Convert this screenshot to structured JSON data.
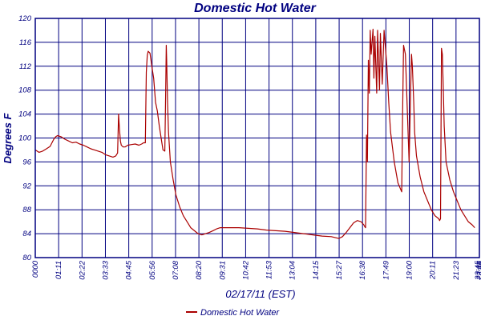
{
  "chart_data": {
    "type": "line",
    "title": "Domestic Hot Water",
    "xlabel": "02/17/11 (EST)",
    "ylabel": "Degrees F",
    "ylim": [
      80,
      120
    ],
    "yticks": [
      80,
      84,
      88,
      92,
      96,
      100,
      104,
      108,
      112,
      116,
      120
    ],
    "x_unit": "hours",
    "xlim": [
      0,
      24
    ],
    "xticks": [
      "0000",
      "01:11",
      "02:22",
      "03:33",
      "04:45",
      "05:56",
      "07:08",
      "08:20",
      "09:31",
      "10:42",
      "11:53",
      "13:04",
      "14:15",
      "15:27",
      "16:38",
      "17:49",
      "19:00",
      "20:11",
      "21:23",
      "22:34",
      "23:45",
      "23:46"
    ],
    "grid": true,
    "legend_position": "bottom-left",
    "colors": {
      "series": "#aa0000",
      "frame": "#000080",
      "text": "#000080"
    },
    "series": [
      {
        "name": "Domestic Hot Water",
        "x": [
          0.0,
          0.2,
          0.4,
          0.6,
          0.8,
          1.0,
          1.1,
          1.2,
          1.4,
          1.6,
          1.8,
          2.0,
          2.2,
          2.4,
          2.6,
          2.8,
          3.0,
          3.2,
          3.4,
          3.6,
          3.8,
          4.0,
          4.2,
          4.35,
          4.45,
          4.5,
          4.55,
          4.6,
          4.65,
          4.75,
          4.85,
          5.0,
          5.2,
          5.4,
          5.6,
          5.75,
          5.85,
          5.95,
          6.0,
          6.05,
          6.1,
          6.2,
          6.3,
          6.4,
          6.5,
          6.6,
          6.7,
          6.8,
          6.9,
          7.0,
          7.05,
          7.08,
          7.1,
          7.15,
          7.2,
          7.3,
          7.45,
          7.6,
          7.8,
          8.0,
          8.2,
          8.4,
          8.6,
          8.8,
          9.0,
          9.2,
          9.4,
          9.6,
          9.8,
          10.0,
          10.5,
          11.0,
          11.5,
          12.0,
          12.5,
          13.0,
          13.5,
          14.0,
          14.5,
          15.0,
          15.5,
          16.0,
          16.4,
          16.6,
          16.8,
          17.0,
          17.2,
          17.4,
          17.6,
          17.75,
          17.8,
          17.85,
          17.9,
          17.95,
          18.0,
          18.05,
          18.1,
          18.15,
          18.25,
          18.3,
          18.35,
          18.45,
          18.5,
          18.6,
          18.65,
          18.75,
          18.85,
          18.9,
          19.0,
          19.1,
          19.2,
          19.4,
          19.6,
          19.8,
          19.85,
          19.9,
          20.0,
          20.1,
          20.2,
          20.3,
          20.33,
          20.38,
          20.45,
          20.5,
          20.6,
          20.8,
          21.0,
          21.2,
          21.4,
          21.6,
          21.8,
          21.85,
          21.9,
          21.95,
          22.0,
          22.05,
          22.1,
          22.2,
          22.4,
          22.6,
          22.8,
          23.0,
          23.2,
          23.4,
          23.6,
          23.75
        ],
        "y": [
          98.0,
          97.6,
          97.8,
          98.2,
          98.6,
          99.8,
          100.2,
          100.4,
          100.2,
          99.8,
          99.5,
          99.2,
          99.3,
          99.0,
          98.8,
          98.5,
          98.2,
          98.0,
          97.8,
          97.6,
          97.2,
          97.0,
          96.8,
          97.0,
          97.5,
          104.0,
          101.5,
          99.5,
          98.8,
          98.5,
          98.5,
          98.8,
          98.9,
          99.0,
          98.8,
          99.0,
          99.2,
          99.2,
          111.0,
          113.8,
          114.5,
          114.2,
          112.0,
          110.0,
          106.0,
          104.5,
          102.0,
          100.0,
          98.0,
          97.8,
          108.0,
          115.5,
          113.0,
          106.0,
          101.0,
          96.0,
          93.0,
          90.5,
          88.5,
          87.0,
          86.0,
          85.0,
          84.5,
          84.0,
          83.8,
          84.0,
          84.2,
          84.5,
          84.8,
          85.0,
          85.0,
          85.0,
          84.9,
          84.8,
          84.6,
          84.5,
          84.4,
          84.2,
          84.0,
          83.8,
          83.6,
          83.5,
          83.2,
          83.5,
          84.2,
          85.0,
          85.8,
          86.2,
          86.0,
          85.5,
          85.2,
          85.0,
          100.5,
          96.0,
          113.0,
          107.5,
          118.0,
          114.0,
          118.2,
          110.0,
          117.0,
          107.5,
          118.0,
          108.0,
          117.5,
          109.0,
          118.0,
          116.0,
          112.0,
          106.0,
          101.0,
          96.0,
          92.5,
          91.0,
          104.0,
          115.5,
          114.0,
          105.0,
          96.0,
          110.0,
          114.0,
          112.0,
          106.0,
          101.0,
          97.0,
          93.5,
          91.0,
          89.5,
          88.0,
          87.0,
          86.5,
          86.2,
          86.5,
          115.0,
          114.0,
          108.0,
          102.0,
          96.0,
          93.0,
          91.0,
          89.5,
          88.0,
          87.0,
          86.0,
          85.5,
          85.0
        ]
      }
    ]
  }
}
